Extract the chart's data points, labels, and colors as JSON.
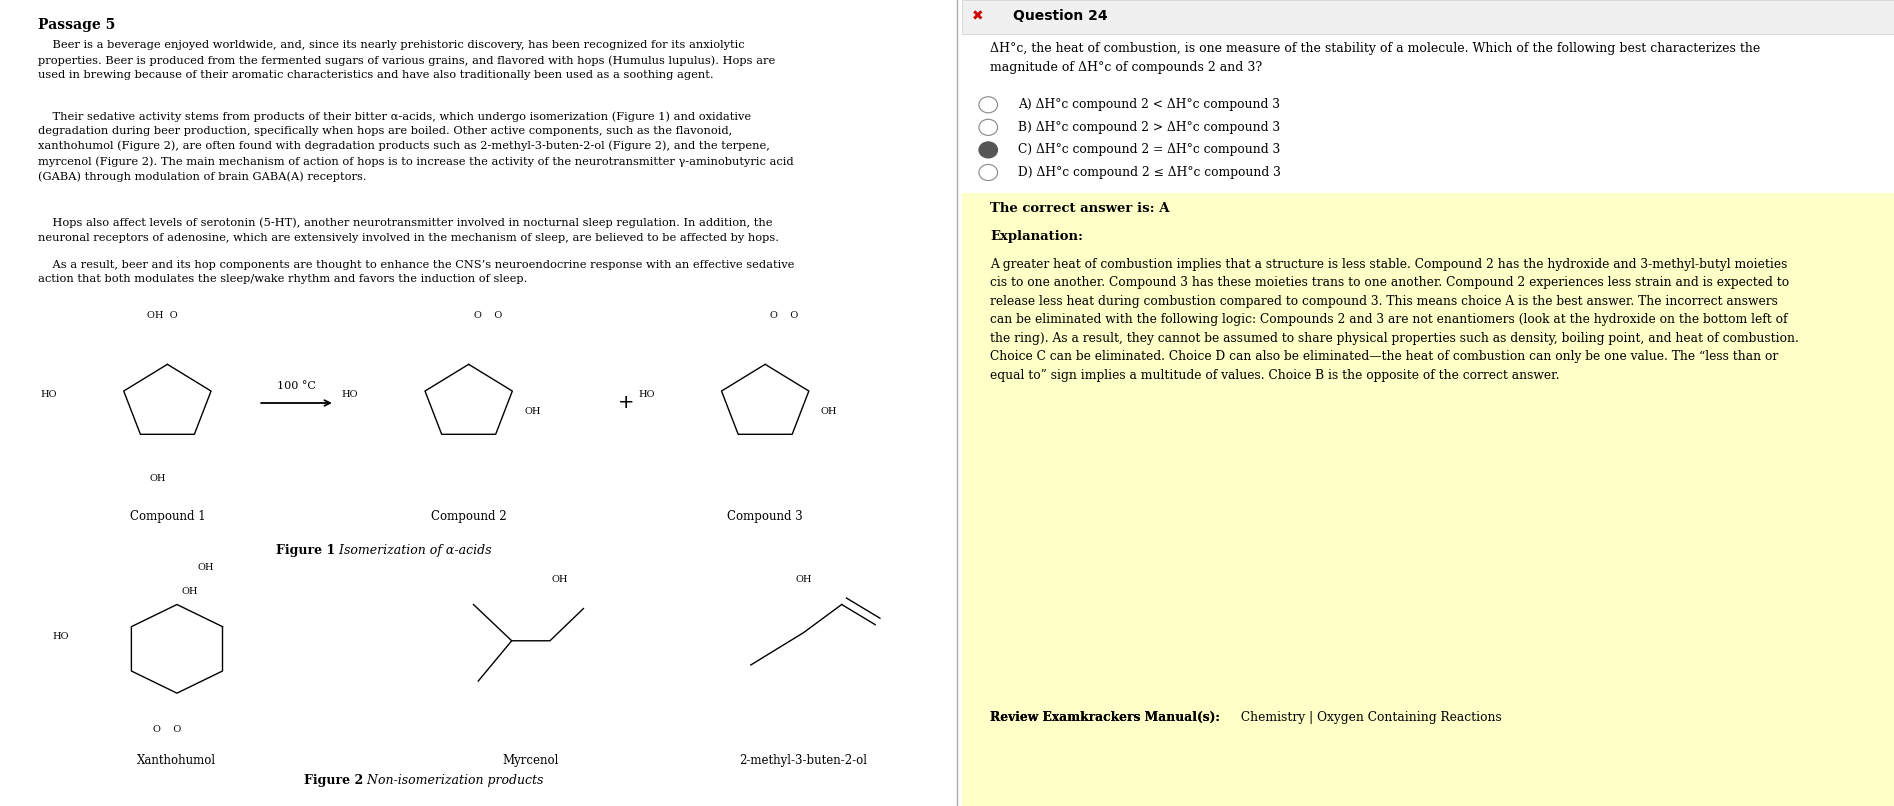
{
  "left_panel": {
    "bg_color": "#ffffff",
    "title": "Passage 5",
    "paragraph1": "    Beer is a beverage enjoyed worldwide, and, since its nearly prehistoric discovery, has been recognized for its anxiolytic\nproperties. Beer is produced from the fermented sugars of various grains, and flavored with hops (Humulus lupulus). Hops are\nused in brewing because of their aromatic characteristics and have also traditionally been used as a soothing agent.",
    "paragraph2": "    Their sedative activity stems from products of their bitter α-acids, which undergo isomerization (Figure 1) and oxidative\ndegradation during beer production, specifically when hops are boiled. Other active components, such as the flavonoid,\nxanthohumol (Figure 2), are often found with degradation products such as 2-methyl-3-buten-2-ol (Figure 2), and the terpene,\nmyrcenol (Figure 2). The main mechanism of action of hops is to increase the activity of the neurotransmitter γ-aminobutyric acid\n(GABA) through modulation of brain GABA(A) receptors.",
    "paragraph3": "    Hops also affect levels of serotonin (5-HT), another neurotransmitter involved in nocturnal sleep regulation. In addition, the\nneuronal receptors of adenosine, which are extensively involved in the mechanism of sleep, are believed to be affected by hops.",
    "paragraph4": "    As a result, beer and its hop components are thought to enhance the CNS’s neuroendocrine response with an effective sedative\naction that both modulates the sleep/wake rhythm and favors the induction of sleep.",
    "figure1_caption_bold": "Figure 1",
    "figure1_caption_italic": " Isomerization of α-acids",
    "figure2_caption_bold": "Figure 2",
    "figure2_caption_italic": " Non-isomerization products",
    "compound_labels": [
      "Compound 1",
      "Compound 2",
      "Compound 3"
    ],
    "figure2_labels": [
      "Xanthohumol",
      "Myrcenol",
      "2-methyl-3-buten-2-ol"
    ],
    "arrow_label": "100 °C"
  },
  "right_panel": {
    "bg_color": "#ffffff",
    "answer_bg_color": "#ffffc8",
    "header_color": "#cc0000",
    "question_number": "Question 24",
    "question_text": "ΔH°c, the heat of combustion, is one measure of the stability of a molecule. Which of the following best characterizes the\nmagnitude of ΔH°c of compounds 2 and 3?",
    "choices": [
      "A) ΔH°c compound 2 < ΔH°c compound 3",
      "B) ΔH°c compound 2 > ΔH°c compound 3",
      "C) ΔH°c compound 2 = ΔH°c compound 3",
      "D) ΔH°c compound 2 ≤ ΔH°c compound 3"
    ],
    "selected_choice": 2,
    "correct_answer_text": "The correct answer is: A",
    "explanation_title": "Explanation:",
    "explanation_text": "A greater heat of combustion implies that a structure is less stable. Compound 2 has the hydroxide and 3-methyl-butyl moieties\ncis to one another. Compound 3 has these moieties trans to one another. Compound 2 experiences less strain and is expected to\nrelease less heat during combustion compared to compound 3. This means choice A is the best answer. The incorrect answers\ncan be eliminated with the following logic: Compounds 2 and 3 are not enantiomers (look at the hydroxide on the bottom left of\nthe ring). As a result, they cannot be assumed to share physical properties such as density, boiling point, and heat of combustion.\nChoice C can be eliminated. Choice D can also be eliminated—the heat of combustion can only be one value. The “less than or\nequal to” sign implies a multitude of values. Choice B is the opposite of the correct answer.",
    "review_text_bold": "Review Examkrackers Manual(s):",
    "review_text_normal": " Chemistry | Oxygen Containing Reactions"
  }
}
